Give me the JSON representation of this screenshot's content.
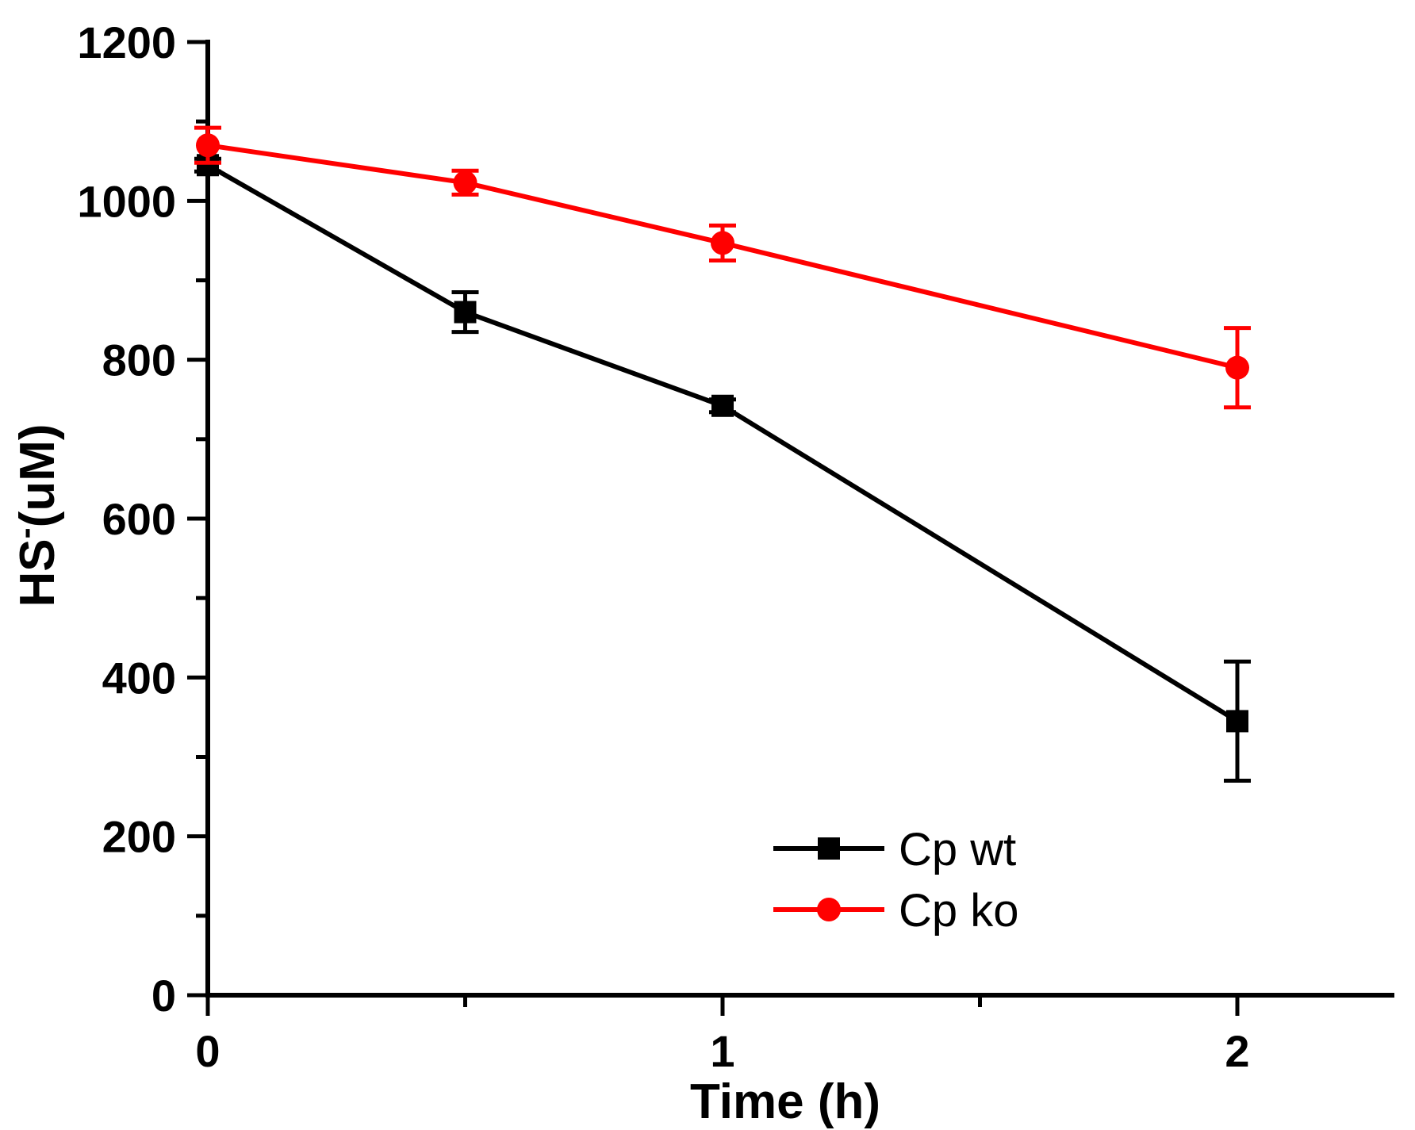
{
  "chart_data": {
    "type": "line",
    "xlabel": "Time (h)",
    "ylabel": {
      "main": "HS",
      "sup": "-",
      "unit": "(uM)"
    },
    "xlim": [
      0,
      2.3
    ],
    "ylim": [
      0,
      1200
    ],
    "x_ticks": [
      0,
      0.5,
      1,
      1.5,
      2
    ],
    "x_tick_labels": [
      "0",
      "",
      "1",
      "",
      "2"
    ],
    "y_ticks": [
      0,
      200,
      400,
      600,
      800,
      1000,
      1200
    ],
    "y_tick_labels": [
      "0",
      "200",
      "400",
      "600",
      "800",
      "1000",
      "1200"
    ],
    "y_minor_ticks": [
      100,
      300,
      500,
      700,
      900,
      1100
    ],
    "grid": false,
    "legend_position": "bottom-right",
    "series": [
      {
        "name": "Cp wt",
        "color": "#000000",
        "marker": "square",
        "x": [
          0,
          0.5,
          1,
          2
        ],
        "y": [
          1045,
          860,
          742,
          345
        ],
        "error": [
          8,
          25,
          8,
          75
        ]
      },
      {
        "name": "Cp ko",
        "color": "#ff0000",
        "marker": "circle",
        "x": [
          0,
          0.5,
          1,
          2
        ],
        "y": [
          1070,
          1023,
          947,
          790
        ],
        "error": [
          22,
          15,
          22,
          50
        ]
      }
    ]
  }
}
